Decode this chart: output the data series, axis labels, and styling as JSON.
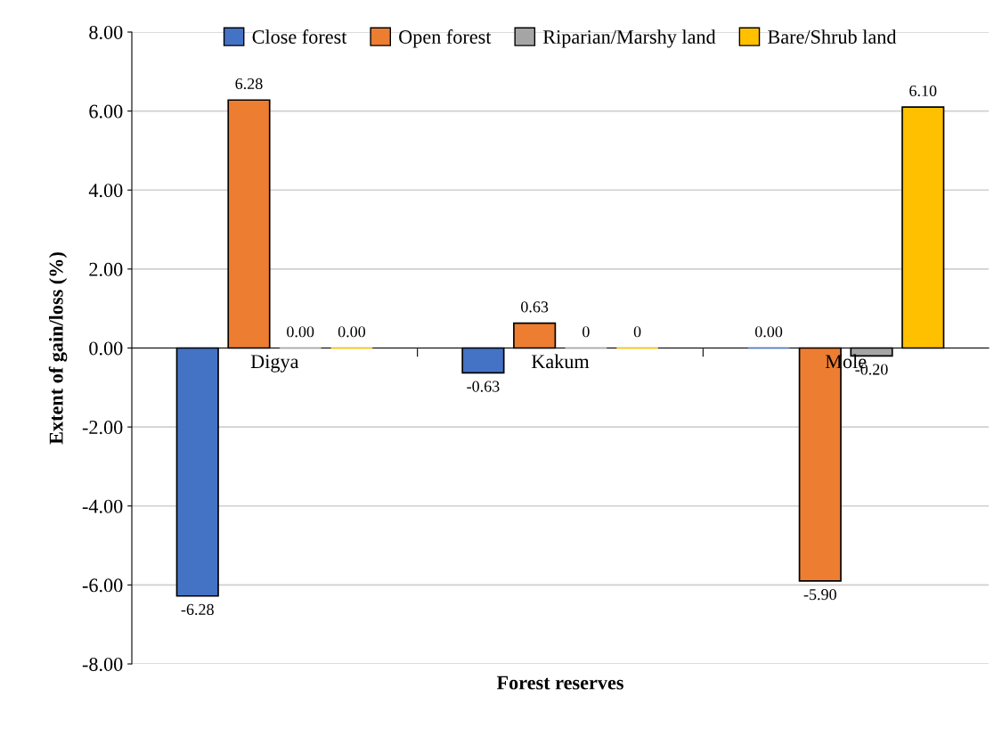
{
  "chart_data": {
    "type": "bar",
    "xlabel": "Forest reserves",
    "ylabel": "Extent of gain/loss (%)",
    "categories": [
      "Digya",
      "Kakum",
      "Mole"
    ],
    "series": [
      {
        "name": "Close forest",
        "color": "#4472c4",
        "values": [
          -6.28,
          -0.63,
          0.0
        ],
        "value_labels": [
          "-6.28",
          "-0.63",
          "0.00"
        ]
      },
      {
        "name": "Open forest",
        "color": "#ed7d31",
        "values": [
          6.28,
          0.63,
          -5.9
        ],
        "value_labels": [
          "6.28",
          "0.63",
          "-5.90"
        ]
      },
      {
        "name": "Riparian/Marshy land",
        "color": "#a5a5a5",
        "values": [
          0.0,
          0,
          -0.2
        ],
        "value_labels": [
          "0.00",
          "0",
          "-0.20"
        ]
      },
      {
        "name": "Bare/Shrub land",
        "color": "#ffc000",
        "values": [
          0.0,
          0,
          6.1
        ],
        "value_labels": [
          "0.00",
          "0",
          "6.10"
        ]
      }
    ],
    "ylim": [
      -8,
      8
    ],
    "yticks": [
      {
        "value": -8,
        "label": "-8.00"
      },
      {
        "value": -6,
        "label": "-6.00"
      },
      {
        "value": -4,
        "label": "-4.00"
      },
      {
        "value": -2,
        "label": "-2.00"
      },
      {
        "value": 0,
        "label": "0.00"
      },
      {
        "value": 2,
        "label": "2.00"
      },
      {
        "value": 4,
        "label": "4.00"
      },
      {
        "value": 6,
        "label": "6.00"
      },
      {
        "value": 8,
        "label": "8.00"
      }
    ],
    "grid": "y",
    "legend": "top"
  }
}
